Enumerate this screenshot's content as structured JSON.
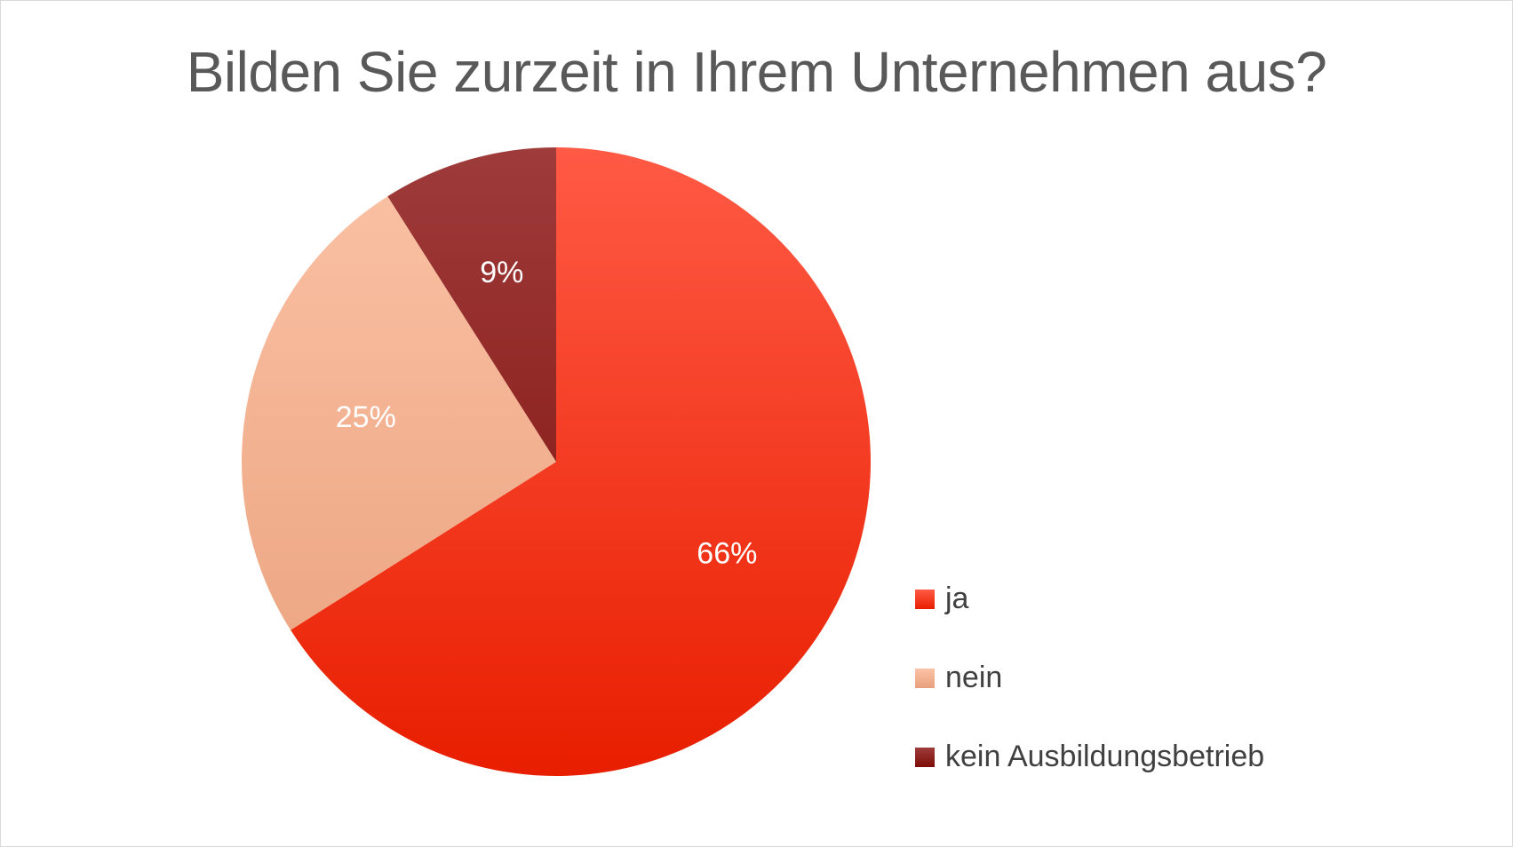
{
  "chart_data": {
    "type": "pie",
    "title": "Bilden Sie zurzeit in Ihrem Unternehmen aus?",
    "slices": [
      {
        "name": "ja",
        "value": 66,
        "label": "66%",
        "color_top": "#ff5a45",
        "color_bottom": "#e81e00"
      },
      {
        "name": "nein",
        "value": 25,
        "label": "25%",
        "color_top": "#fbc2a5",
        "color_bottom": "#e9a07c"
      },
      {
        "name": "kein Ausbildungsbetrieb",
        "value": 9,
        "label": "9%",
        "color_top": "#9e3b3b",
        "color_bottom": "#7d0d06"
      }
    ],
    "start": "12 o'clock",
    "direction": "clockwise",
    "legend_position": "bottom-right"
  }
}
